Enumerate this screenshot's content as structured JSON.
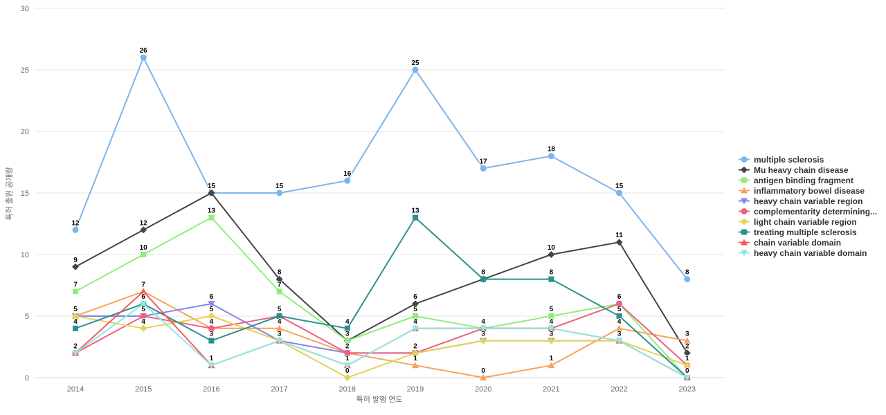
{
  "chart_data": {
    "type": "line",
    "title": "",
    "xlabel": "특허 발행 연도",
    "ylabel": "특허 출원 공개량",
    "x": [
      2014,
      2015,
      2016,
      2017,
      2018,
      2019,
      2020,
      2021,
      2022,
      2023
    ],
    "ylim": [
      0,
      30
    ],
    "yticks": [
      0,
      5,
      10,
      15,
      20,
      25,
      30
    ],
    "grid": true,
    "legend_position": "right",
    "grid_color": "#e6e6e6",
    "axis_line_color": "#ccd6eb",
    "series": [
      {
        "name": "multiple sclerosis",
        "color": "#7cb5ec",
        "marker": "circle",
        "values": [
          12,
          26,
          15,
          15,
          16,
          25,
          17,
          18,
          15,
          8
        ]
      },
      {
        "name": "Mu heavy chain disease",
        "color": "#434348",
        "marker": "diamond",
        "values": [
          9,
          12,
          15,
          8,
          3,
          6,
          8,
          10,
          11,
          2
        ]
      },
      {
        "name": "antigen binding fragment",
        "color": "#90ed7d",
        "marker": "square",
        "values": [
          7,
          10,
          13,
          7,
          3,
          5,
          4,
          5,
          6,
          0
        ]
      },
      {
        "name": "inflammatory bowel disease",
        "color": "#f7a35c",
        "marker": "triangle",
        "values": [
          5,
          7,
          4,
          4,
          2,
          1,
          0,
          1,
          4,
          3
        ]
      },
      {
        "name": "heavy chain variable region",
        "color": "#8085e9",
        "marker": "triangle-down",
        "values": [
          5,
          5,
          6,
          3,
          2,
          2,
          3,
          3,
          3,
          0
        ]
      },
      {
        "name": "complementarity determining...",
        "color": "#f15c80",
        "marker": "circle",
        "values": [
          2,
          5,
          4,
          5,
          2,
          2,
          4,
          4,
          6,
          1
        ]
      },
      {
        "name": "light chain variable region",
        "color": "#e4d354",
        "marker": "diamond",
        "values": [
          5,
          4,
          5,
          3,
          0,
          2,
          3,
          3,
          3,
          1
        ]
      },
      {
        "name": "treating multiple sclerosis",
        "color": "#2b908f",
        "marker": "square",
        "values": [
          4,
          6,
          3,
          5,
          4,
          13,
          8,
          8,
          5,
          0
        ]
      },
      {
        "name": "chain variable domain",
        "color": "#f45b5b",
        "marker": "triangle",
        "values": [
          2,
          7,
          1,
          3,
          1,
          4,
          4,
          4,
          3,
          0
        ]
      },
      {
        "name": "heavy chain variable domain",
        "color": "#91e8e1",
        "marker": "triangle-down",
        "values": [
          2,
          6,
          1,
          3,
          1,
          4,
          4,
          4,
          3,
          0
        ]
      }
    ]
  }
}
